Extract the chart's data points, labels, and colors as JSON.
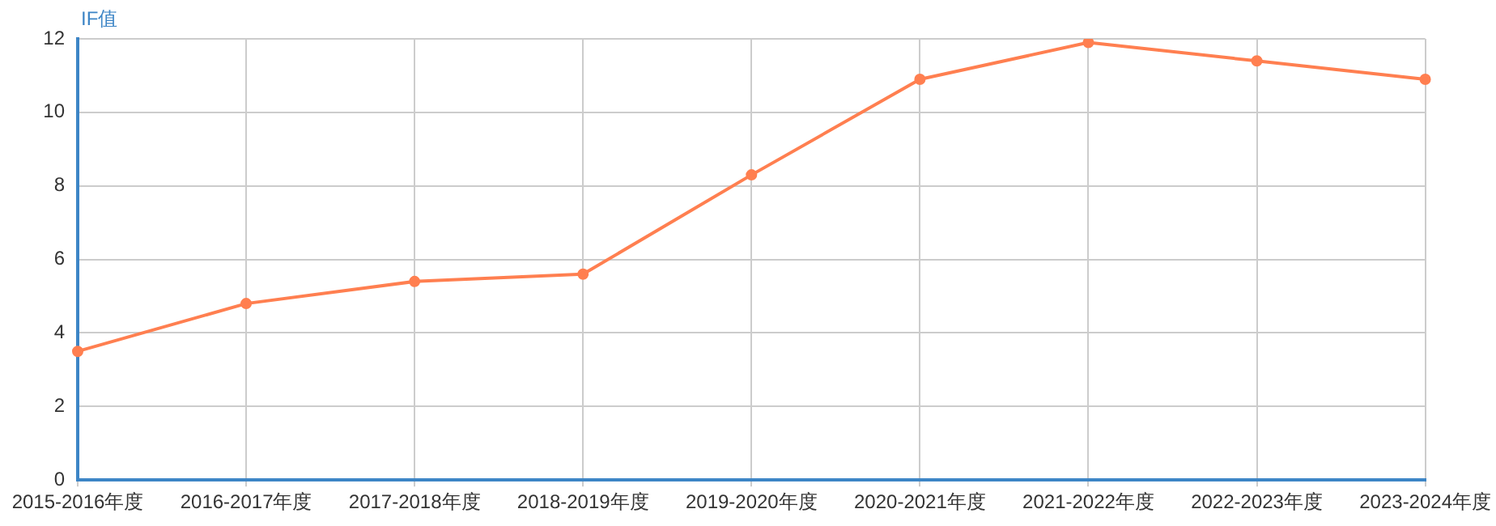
{
  "chart_data": {
    "type": "line",
    "ylabel": "IF值",
    "categories": [
      "2015-2016年度",
      "2016-2017年度",
      "2017-2018年度",
      "2018-2019年度",
      "2019-2020年度",
      "2020-2021年度",
      "2021-2022年度",
      "2022-2023年度",
      "2023-2024年度"
    ],
    "series": [
      {
        "color": "#ff7f50",
        "values": [
          3.5,
          4.8,
          5.4,
          5.6,
          8.3,
          10.9,
          11.9,
          11.4,
          10.9
        ]
      }
    ],
    "ylim": [
      0,
      12
    ],
    "yticks": [
      0,
      2,
      4,
      6,
      8,
      10,
      12
    ],
    "grid": true,
    "marker": "circle",
    "line_style": "solid"
  }
}
